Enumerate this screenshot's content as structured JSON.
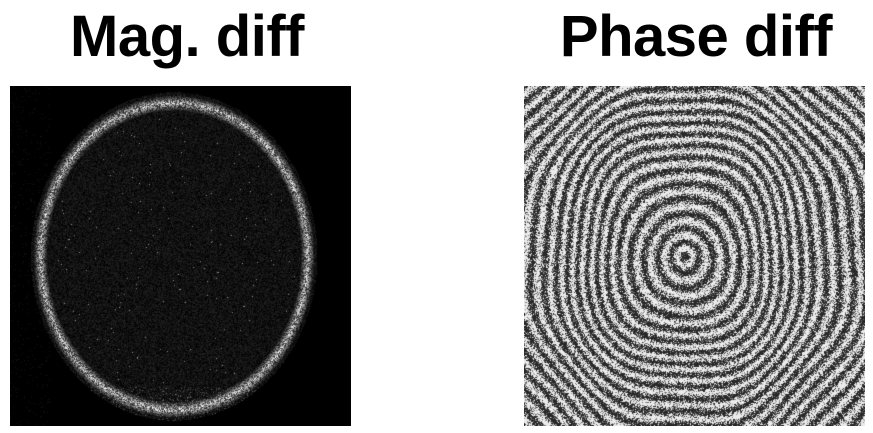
{
  "panels": [
    {
      "title": "Mag. diff",
      "image": "magnitude-difference-image",
      "colormap": "gray"
    },
    {
      "title": "Phase diff",
      "image": "phase-difference-image",
      "colormap": "gray"
    }
  ],
  "colors": {
    "background": "#ffffff",
    "title_text": "#000000"
  }
}
